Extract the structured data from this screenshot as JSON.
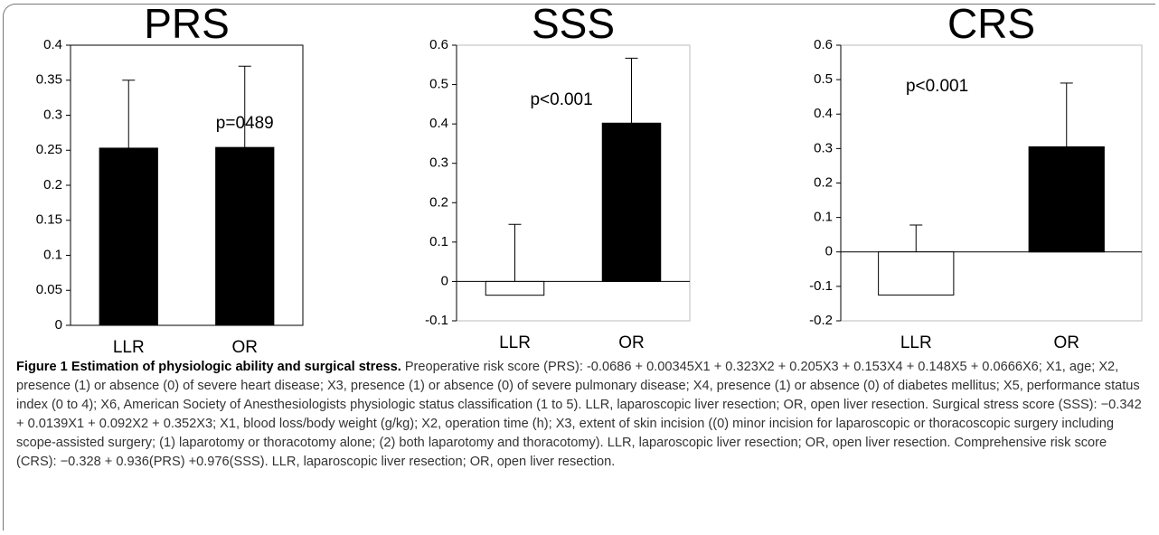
{
  "chart_data": [
    {
      "type": "bar",
      "title": "PRS",
      "categories": [
        "LLR",
        "OR"
      ],
      "series": [
        {
          "values": [
            0.253,
            0.254
          ],
          "errors": [
            0.097,
            0.116
          ],
          "colors": [
            "#000000",
            "#000000"
          ]
        }
      ],
      "annotation": "p=0489",
      "ylim": [
        0,
        0.4
      ],
      "yticks": [
        0,
        0.05,
        0.1,
        0.15,
        0.2,
        0.25,
        0.3,
        0.35,
        0.4
      ]
    },
    {
      "type": "bar",
      "title": "SSS",
      "categories": [
        "LLR",
        "OR"
      ],
      "series": [
        {
          "values": [
            -0.035,
            0.402
          ],
          "errors": [
            0.18,
            0.165
          ],
          "colors": [
            "#ffffff",
            "#000000"
          ]
        }
      ],
      "annotation": "p<0.001",
      "ylim": [
        -0.1,
        0.6
      ],
      "yticks": [
        -0.1,
        0,
        0.1,
        0.2,
        0.3,
        0.4,
        0.5,
        0.6
      ]
    },
    {
      "type": "bar",
      "title": "CRS",
      "categories": [
        "LLR",
        "OR"
      ],
      "series": [
        {
          "values": [
            -0.125,
            0.305
          ],
          "errors": [
            0.203,
            0.185
          ],
          "colors": [
            "#ffffff",
            "#000000"
          ]
        }
      ],
      "annotation": "p<0.001",
      "ylim": [
        -0.2,
        0.6
      ],
      "yticks": [
        -0.2,
        -0.1,
        0,
        0.1,
        0.2,
        0.3,
        0.4,
        0.5,
        0.6
      ]
    }
  ],
  "caption": {
    "title": "Figure 1 Estimation of physiologic ability and surgical stress.",
    "text": "Preoperative risk score (PRS): -0.0686 + 0.00345X1 + 0.323X2 + 0.205X3 + 0.153X4 + 0.148X5 + 0.0666X6; X1, age; X2, presence (1) or absence (0) of severe heart disease; X3, presence (1) or absence (0) of severe pulmonary disease; X4, presence (1) or absence (0) of diabetes mellitus; X5, performance status index (0 to 4); X6, American Society of Anesthesiologists physiologic status classification (1 to 5). LLR, laparoscopic liver resection; OR, open liver resection. Surgical stress score (SSS): −0.342 + 0.0139X1 + 0.092X2 + 0.352X3; X1, blood loss/body weight (g/kg); X2, operation time (h); X3, extent of skin incision ((0) minor incision for laparoscopic or thoracoscopic surgery including scope-assisted surgery; (1) laparotomy or thoracotomy alone; (2) both laparotomy and thoracotomy). LLR, laparoscopic liver resection; OR, open liver resection. Comprehensive risk score (CRS): −0.328 + 0.936(PRS) +0.976(SSS). LLR, laparoscopic liver resection; OR, open liver resection."
  }
}
